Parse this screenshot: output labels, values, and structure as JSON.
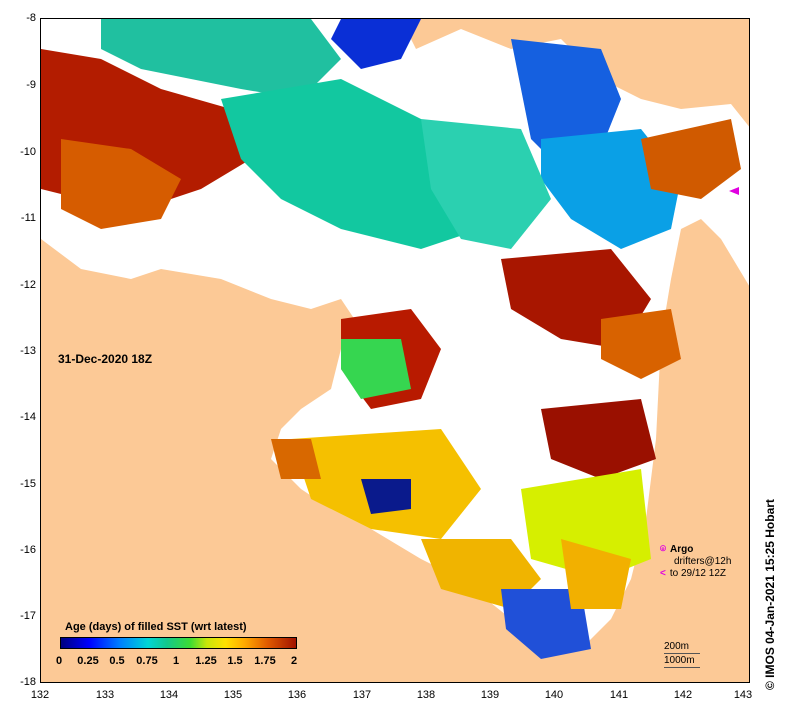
{
  "map": {
    "timestamp": "31-Dec-2020 18Z",
    "credit": "© IMOS 04-Jan-2021 15:25 Hobart",
    "x_axis": {
      "labels": [
        "132",
        "133",
        "134",
        "135",
        "136",
        "137",
        "138",
        "139",
        "140",
        "141",
        "142",
        "143"
      ]
    },
    "y_axis": {
      "labels": [
        "-8",
        "-9",
        "-10",
        "-11",
        "-12",
        "-13",
        "-14",
        "-15",
        "-16",
        "-17",
        "-18"
      ]
    },
    "land_color": "#fcc996",
    "nodata_color": "#ffffff"
  },
  "legend": {
    "title": "Age (days) of filled SST (wrt latest)",
    "ticks": [
      "0",
      "0.25",
      "0.5",
      "0.75",
      "1",
      "1.25",
      "1.5",
      "1.75",
      "2"
    ]
  },
  "argo": {
    "label": "Argo",
    "drifters_line1": "drifters@12h",
    "drifters_line2": "to 29/12 12Z",
    "argo_symbol": "⌾",
    "drifter_symbol": "<",
    "color": "#e000e0"
  },
  "contours": {
    "line1": "200m",
    "line2": "1000m"
  }
}
